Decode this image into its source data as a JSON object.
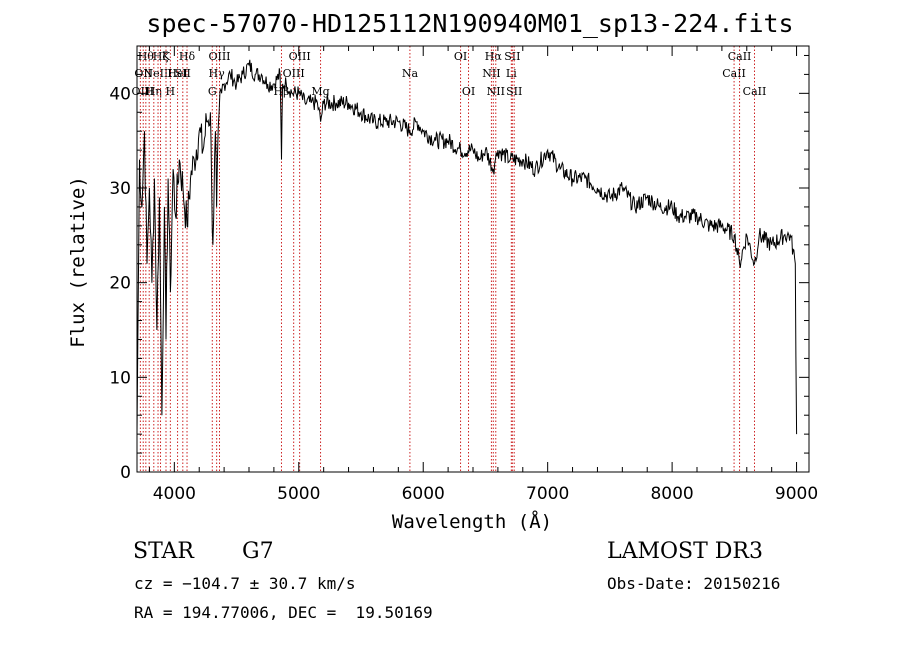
{
  "chart_data": {
    "type": "line",
    "title": "spec-57070-HD125112N190940M01_sp13-224.fits",
    "xlabel": "Wavelength (Å)",
    "ylabel": "Flux (relative)",
    "xlim": [
      3700,
      9100
    ],
    "ylim": [
      0,
      45
    ],
    "xticks": [
      4000,
      5000,
      6000,
      7000,
      8000,
      9000
    ],
    "yticks": [
      0,
      10,
      20,
      30,
      40
    ],
    "series": [
      {
        "name": "flux",
        "x": [
          3700,
          3720,
          3740,
          3760,
          3780,
          3800,
          3820,
          3840,
          3860,
          3880,
          3900,
          3920,
          3933,
          3950,
          3968,
          3990,
          4010,
          4040,
          4070,
          4102,
          4130,
          4160,
          4200,
          4230,
          4260,
          4290,
          4300,
          4310,
          4330,
          4340,
          4360,
          4380,
          4400,
          4450,
          4500,
          4550,
          4600,
          4650,
          4700,
          4750,
          4800,
          4850,
          4861,
          4870,
          4900,
          4950,
          5000,
          5050,
          5100,
          5150,
          5175,
          5200,
          5300,
          5400,
          5500,
          5600,
          5700,
          5800,
          5893,
          5950,
          6000,
          6100,
          6200,
          6300,
          6400,
          6450,
          6500,
          6563,
          6580,
          6600,
          6700,
          6800,
          6900,
          7000,
          7100,
          7200,
          7300,
          7400,
          7500,
          7600,
          7700,
          7800,
          7900,
          8000,
          8050,
          8100,
          8200,
          8300,
          8400,
          8500,
          8542,
          8600,
          8662,
          8700,
          8800,
          8900,
          8950,
          8990,
          9000
        ],
        "y": [
          4,
          33,
          28,
          36,
          22,
          30,
          20,
          31,
          15,
          29,
          6,
          28,
          14,
          31,
          19,
          32,
          27,
          33,
          30,
          26,
          31,
          33,
          36,
          34,
          37,
          38,
          30,
          24,
          36,
          28,
          38,
          40,
          41,
          42,
          41,
          42,
          43,
          42,
          42,
          41,
          41,
          42,
          33,
          41,
          41,
          40,
          40,
          39,
          39,
          39,
          37,
          39,
          39,
          39,
          38,
          37,
          37,
          37,
          36,
          37,
          36,
          35,
          35,
          34,
          34,
          33,
          34,
          32,
          33,
          34,
          33,
          33,
          32,
          34,
          32,
          31,
          31,
          30,
          29,
          30,
          28,
          29,
          28,
          28,
          27,
          27,
          27,
          26,
          26,
          25,
          22,
          25,
          22,
          25,
          24,
          25,
          25,
          22,
          4
        ]
      }
    ],
    "lines": [
      {
        "x": 3727,
        "label": "OII",
        "row": 2
      },
      {
        "x": 3750,
        "label": "OII",
        "row": 1
      },
      {
        "x": 3771,
        "label": "Hθ",
        "row": 0
      },
      {
        "x": 3798,
        "label": "H",
        "row": 2
      },
      {
        "x": 3835,
        "label": "Hη",
        "row": 2
      },
      {
        "x": 3869,
        "label": "NeIII",
        "row": 1
      },
      {
        "x": 3889,
        "label": "Hζ",
        "row": 0
      },
      {
        "x": 3933,
        "label": "K",
        "row": 0
      },
      {
        "x": 3968,
        "label": "H",
        "row": 2
      },
      {
        "x": 4026,
        "label": "HeI",
        "row": 1
      },
      {
        "x": 4068,
        "label": "SII",
        "row": 1
      },
      {
        "x": 4102,
        "label": "Hδ",
        "row": 0
      },
      {
        "x": 4305,
        "label": "G",
        "row": 2
      },
      {
        "x": 4340,
        "label": "Hγ",
        "row": 1
      },
      {
        "x": 4363,
        "label": "OIII",
        "row": 0
      },
      {
        "x": 4861,
        "label": "Hβ",
        "row": 2
      },
      {
        "x": 4959,
        "label": "OIII",
        "row": 1
      },
      {
        "x": 5007,
        "label": "OIII",
        "row": 0
      },
      {
        "x": 5175,
        "label": "Mg",
        "row": 2
      },
      {
        "x": 5893,
        "label": "Na",
        "row": 1
      },
      {
        "x": 6300,
        "label": "OI",
        "row": 0
      },
      {
        "x": 6364,
        "label": "OI",
        "row": 2
      },
      {
        "x": 6548,
        "label": "NII",
        "row": 1
      },
      {
        "x": 6563,
        "label": "Hα",
        "row": 0
      },
      {
        "x": 6583,
        "label": "NII",
        "row": 2
      },
      {
        "x": 6708,
        "label": "Li",
        "row": 1
      },
      {
        "x": 6716,
        "label": "SII",
        "row": 0
      },
      {
        "x": 6731,
        "label": "SII",
        "row": 2
      },
      {
        "x": 8498,
        "label": "CaII",
        "row": 1
      },
      {
        "x": 8542,
        "label": "CaII",
        "row": 0
      },
      {
        "x": 8662,
        "label": "CaII",
        "row": 2
      }
    ],
    "line_color": "#cc2222",
    "grid": false
  },
  "info": {
    "object_type": "STAR",
    "subclass": "G7",
    "survey": "LAMOST DR3",
    "cz": "cz = −104.7 ± 30.7 km/s",
    "obs_date": "Obs-Date: 20150216",
    "coords": "RA = 194.77006, DEC =  19.50169"
  }
}
